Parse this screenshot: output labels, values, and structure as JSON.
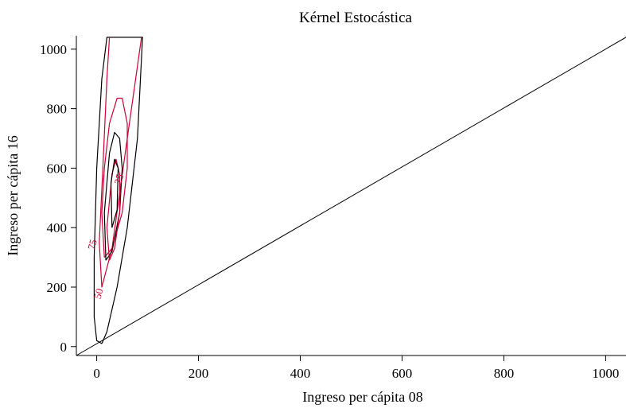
{
  "chart_data": {
    "type": "contour",
    "title": "Kérnel Estocástica",
    "xlabel": "Ingreso per cápita 08",
    "ylabel": "Ingreso per cápita 16",
    "xlim": [
      -40,
      1040
    ],
    "ylim": [
      -30,
      1045
    ],
    "xticks": [
      0,
      200,
      400,
      600,
      800,
      1000
    ],
    "yticks": [
      0,
      200,
      400,
      600,
      800,
      1000
    ],
    "grid": false,
    "colors": {
      "black": "#000000",
      "red": "#cc0033"
    },
    "diagonal": {
      "name": "45-degree line",
      "points": [
        [
          -40,
          -30
        ],
        [
          1040,
          1040
        ]
      ]
    },
    "contours": [
      {
        "color": "#000000",
        "points": [
          [
            10,
            10
          ],
          [
            20,
            50
          ],
          [
            40,
            200
          ],
          [
            60,
            400
          ],
          [
            80,
            700
          ],
          [
            90,
            1040
          ],
          [
            20,
            1040
          ],
          [
            10,
            900
          ],
          [
            0,
            600
          ],
          [
            -5,
            300
          ],
          [
            -5,
            100
          ],
          [
            0,
            20
          ],
          [
            10,
            10
          ]
        ]
      },
      {
        "color": "#cc0033",
        "points": [
          [
            88,
            1040
          ],
          [
            60,
            700
          ],
          [
            30,
            330
          ],
          [
            10,
            200
          ],
          [
            5,
            350
          ],
          [
            12,
            600
          ],
          [
            20,
            900
          ],
          [
            25,
            1040
          ]
        ]
      },
      {
        "color": "#cc0033",
        "points": [
          [
            15,
            300
          ],
          [
            30,
            330
          ],
          [
            50,
            450
          ],
          [
            60,
            600
          ],
          [
            60,
            750
          ],
          [
            50,
            835
          ],
          [
            40,
            835
          ],
          [
            25,
            750
          ],
          [
            15,
            600
          ],
          [
            10,
            450
          ],
          [
            15,
            300
          ]
        ]
      },
      {
        "color": "#000000",
        "points": [
          [
            18,
            290
          ],
          [
            30,
            320
          ],
          [
            45,
            450
          ],
          [
            50,
            600
          ],
          [
            45,
            700
          ],
          [
            35,
            720
          ],
          [
            25,
            650
          ],
          [
            15,
            450
          ],
          [
            18,
            290
          ]
        ]
      },
      {
        "color": "#cc0033",
        "points": [
          [
            25,
            290
          ],
          [
            35,
            330
          ],
          [
            45,
            450
          ],
          [
            45,
            580
          ],
          [
            38,
            630
          ],
          [
            30,
            580
          ],
          [
            20,
            400
          ],
          [
            25,
            290
          ]
        ]
      },
      {
        "color": "#000000",
        "points": [
          [
            30,
            400
          ],
          [
            40,
            460
          ],
          [
            42,
            600
          ],
          [
            35,
            630
          ],
          [
            28,
            550
          ],
          [
            30,
            400
          ]
        ]
      }
    ],
    "contour_labels": [
      {
        "text": "25",
        "x": 50,
        "y": 560,
        "color": "#cc0033"
      },
      {
        "text": "75",
        "x": -2,
        "y": 340,
        "color": "#cc0033"
      },
      {
        "text": "50",
        "x": 10,
        "y": 175,
        "color": "#cc0033"
      }
    ]
  }
}
